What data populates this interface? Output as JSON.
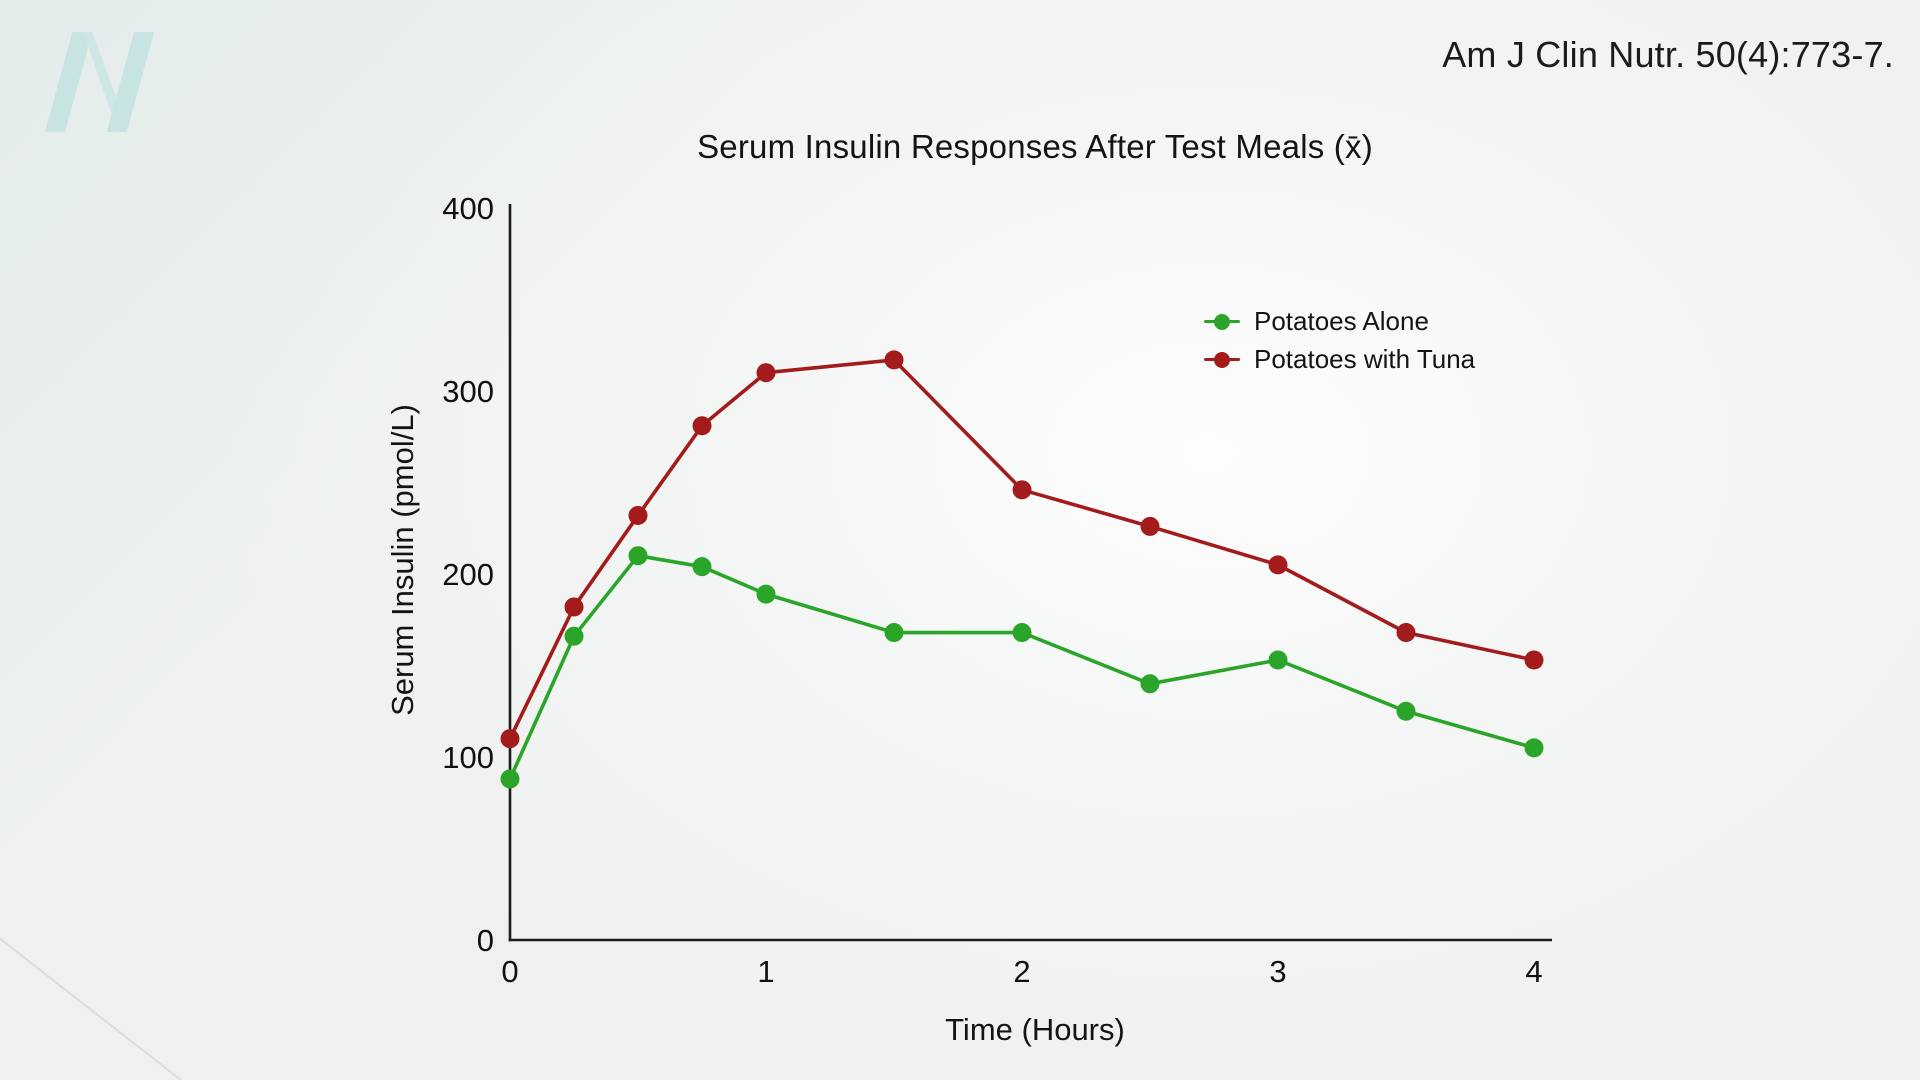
{
  "page": {
    "citation": "Am J Clin Nutr. 50(4):773-7.",
    "logo": "pale-teal-italic-N-watermark",
    "background_color": "#f0f3f2",
    "logo_color": "#c7e3e2"
  },
  "chart_data": {
    "type": "line",
    "title": "Serum Insulin Responses After Test Meals (x̄)",
    "xlabel": "Time (Hours)",
    "ylabel": "Serum Insulin (pmol/L)",
    "x": [
      0,
      0.25,
      0.5,
      0.75,
      1,
      1.5,
      2,
      2.5,
      3,
      3.5,
      4
    ],
    "series": [
      {
        "name": "Potatoes Alone",
        "color": "#2aa52a",
        "values": [
          88,
          166,
          210,
          204,
          189,
          168,
          168,
          140,
          153,
          125,
          105
        ]
      },
      {
        "name": "Potatoes with Tuna",
        "color": "#a31b1b",
        "values": [
          110,
          182,
          232,
          281,
          310,
          317,
          246,
          226,
          205,
          168,
          153
        ]
      }
    ],
    "xlim": [
      0,
      4
    ],
    "ylim": [
      0,
      400
    ],
    "xticks": [
      0,
      1,
      2,
      3,
      4
    ],
    "yticks": [
      0,
      100,
      200,
      300,
      400
    ],
    "grid": false,
    "legend_position": "inside-upper-right",
    "marker": "circle",
    "axis_color": "#1c1c1c"
  }
}
